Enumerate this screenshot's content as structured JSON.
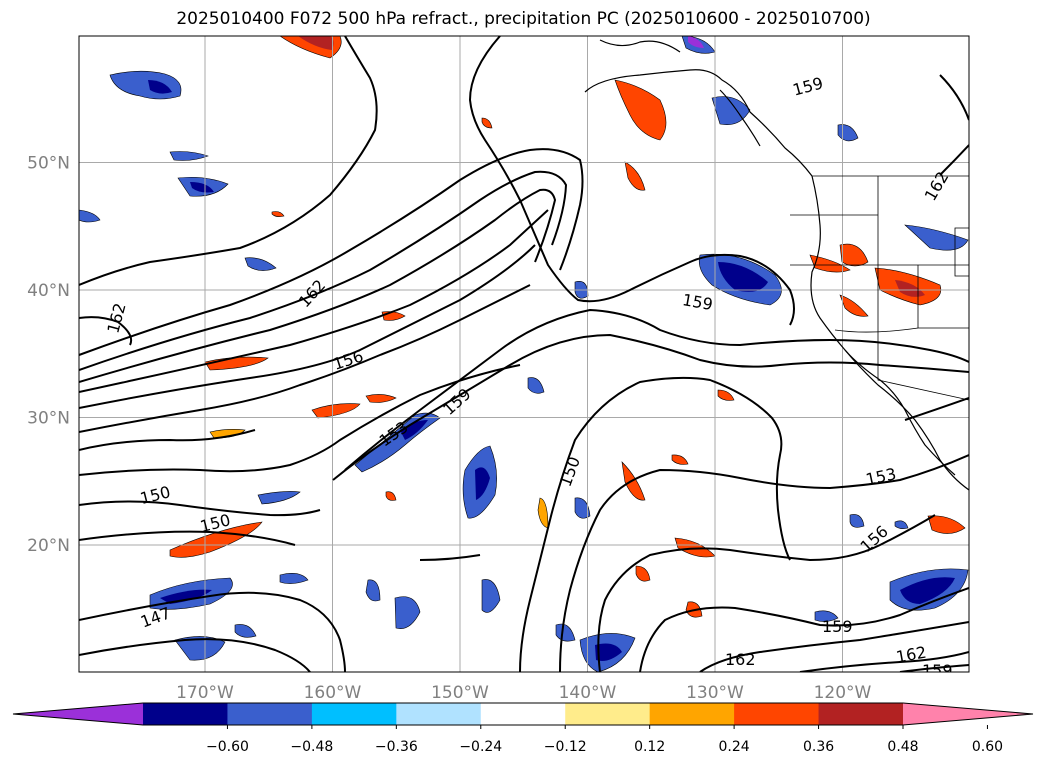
{
  "title": "2025010400 F072 500 hPa refract., precipitation PC (2025010600 - 2025010700)",
  "map": {
    "lon_ticks": [
      {
        "lon": -170,
        "label": "170°W"
      },
      {
        "lon": -160,
        "label": "160°W"
      },
      {
        "lon": -150,
        "label": "150°W"
      },
      {
        "lon": -140,
        "label": "140°W"
      },
      {
        "lon": -130,
        "label": "130°W"
      },
      {
        "lon": -120,
        "label": "120°W"
      }
    ],
    "lat_ticks": [
      {
        "lat": 20,
        "label": "20°N"
      },
      {
        "lat": 30,
        "label": "30°N"
      },
      {
        "lat": 40,
        "label": "40°N"
      },
      {
        "lat": 50,
        "label": "50°N"
      }
    ],
    "contour_labels": [
      "162",
      "162",
      "162",
      "162",
      "159",
      "159",
      "159",
      "159",
      "159",
      "156",
      "156",
      "153",
      "153",
      "150",
      "150",
      "150",
      "147"
    ]
  },
  "colorbar": {
    "ticks": [
      "−0.60",
      "−0.48",
      "−0.36",
      "−0.24",
      "−0.12",
      "0.12",
      "0.24",
      "0.36",
      "0.48",
      "0.60"
    ],
    "colors": [
      "#9b30d9",
      "#00008b",
      "#3a5fcd",
      "#00bfff",
      "#b0e2ff",
      "#ffffff",
      "#ffec8b",
      "#ffa500",
      "#ff4500",
      "#b22222",
      "#ff82ab"
    ]
  }
}
